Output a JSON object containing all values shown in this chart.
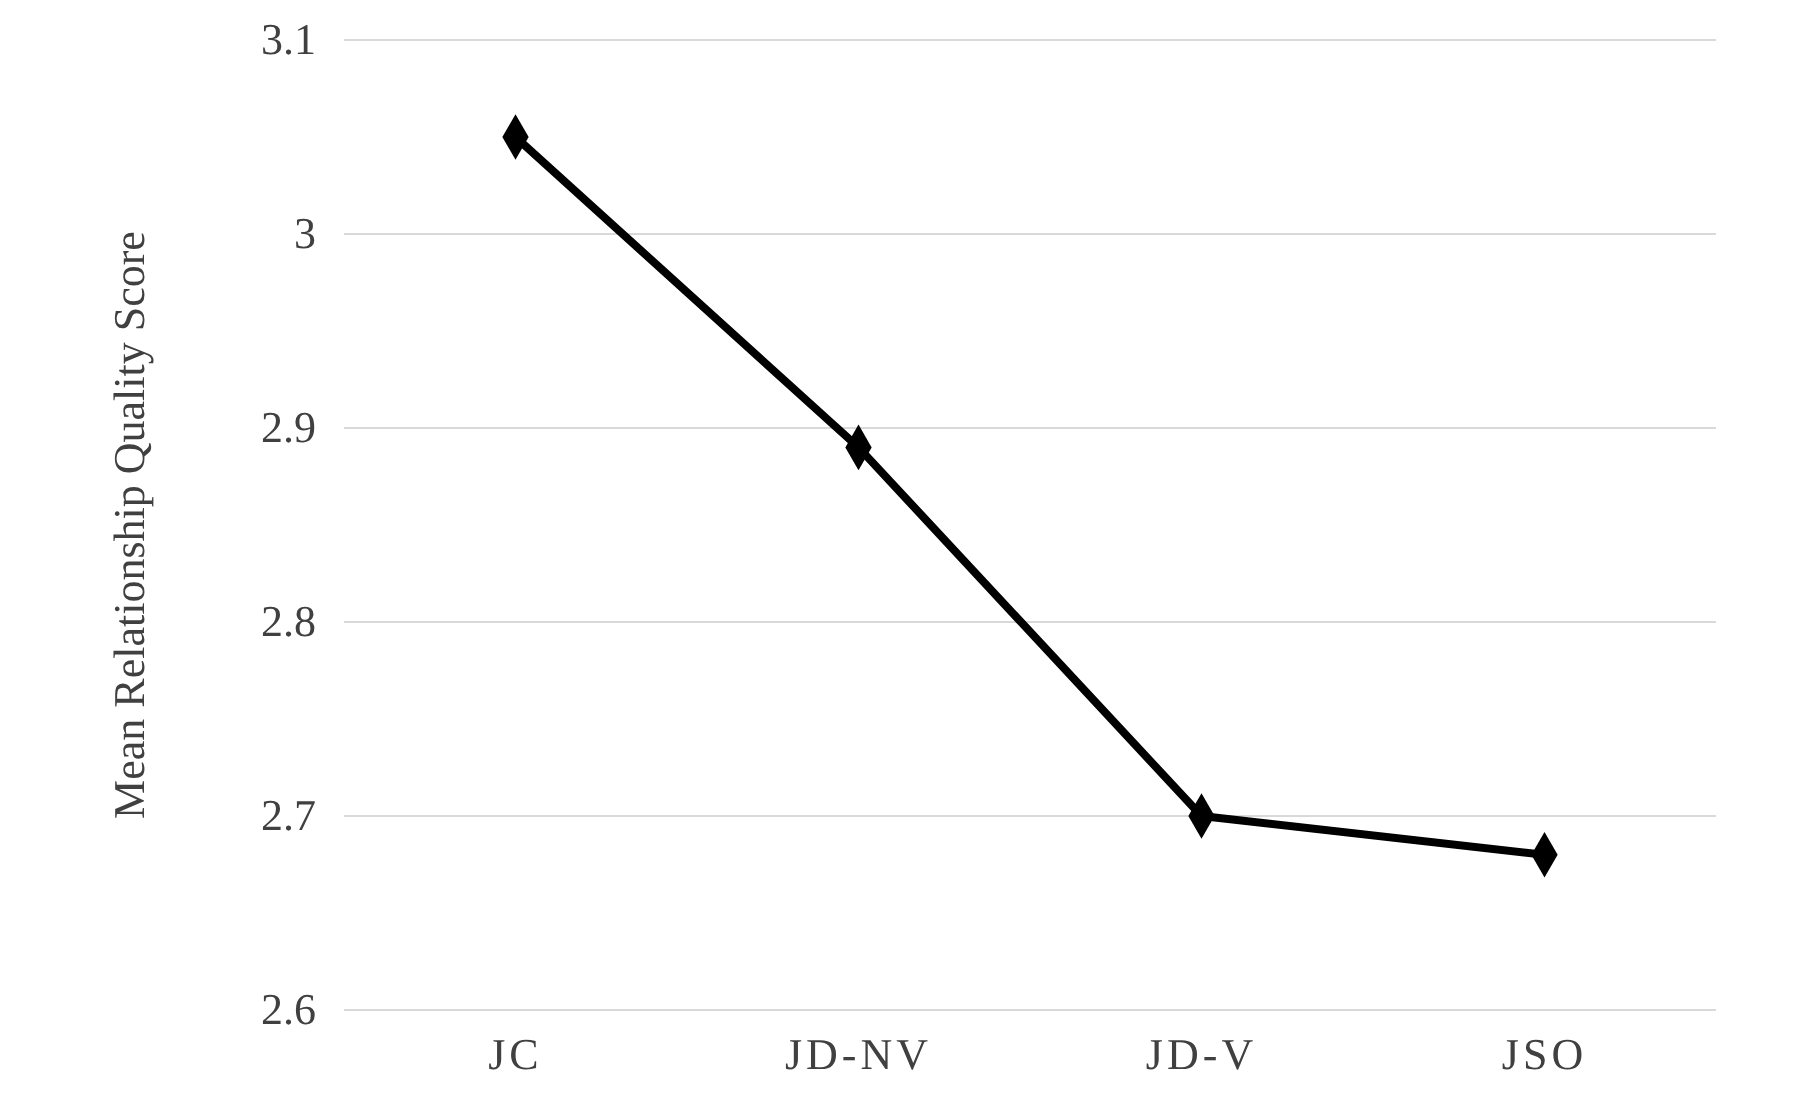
{
  "chart_data": {
    "type": "line",
    "ylabel": "Mean Relationship Quality Score",
    "categories": [
      "JC",
      "JD-NV",
      "JD-V",
      "JSO"
    ],
    "series": [
      {
        "color": "#000000",
        "values": [
          3.05,
          2.89,
          2.7,
          2.68
        ]
      }
    ],
    "ylim": [
      2.6,
      3.1
    ],
    "yticks": [
      2.6,
      2.7,
      2.8,
      2.9,
      3,
      3.1
    ],
    "grid": "y",
    "marker": "diamond",
    "line_style": "solid"
  }
}
